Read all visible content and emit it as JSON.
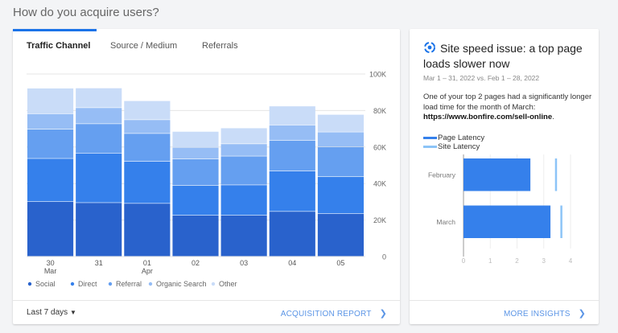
{
  "page_title": "How do you acquire users?",
  "acquisition": {
    "tabs": [
      {
        "label": "Traffic Channel",
        "active": true
      },
      {
        "label": "Source / Medium",
        "active": false
      },
      {
        "label": "Referrals",
        "active": false
      }
    ],
    "date_range": "Last 7 days",
    "report_link": "ACQUISITION REPORT",
    "accent": "#1a73e8"
  },
  "chart_data": [
    {
      "type": "bar",
      "stacked": true,
      "categories": [
        "30 Mar",
        "31",
        "01 Apr",
        "02",
        "03",
        "04",
        "05"
      ],
      "x_tick_labels": [
        [
          "30",
          "Mar"
        ],
        [
          "31",
          ""
        ],
        [
          "01",
          "Apr"
        ],
        [
          "02",
          ""
        ],
        [
          "03",
          ""
        ],
        [
          "04",
          ""
        ],
        [
          "05",
          ""
        ]
      ],
      "y_ticks": [
        "0",
        "20K",
        "40K",
        "60K",
        "80K",
        "100K"
      ],
      "ylim": [
        0,
        100000
      ],
      "y_axis_side": "right",
      "grid": true,
      "legend": "bottom",
      "series": [
        {
          "name": "Social",
          "color": "#2962cc",
          "values": [
            30000,
            29400,
            29000,
            22500,
            22500,
            24600,
            23400
          ]
        },
        {
          "name": "Direct",
          "color": "#3580eb",
          "values": [
            23600,
            27100,
            23000,
            16300,
            16600,
            22100,
            20200
          ]
        },
        {
          "name": "Referral",
          "color": "#659ff0",
          "values": [
            16000,
            16100,
            15300,
            14500,
            15800,
            16800,
            16300
          ]
        },
        {
          "name": "Organic Search",
          "color": "#96bdf5",
          "values": [
            8500,
            8800,
            7500,
            6400,
            6700,
            8400,
            8200
          ]
        },
        {
          "name": "Other",
          "color": "#c9dcf8",
          "values": [
            14000,
            10800,
            10400,
            8700,
            8700,
            10400,
            9600
          ]
        }
      ]
    },
    {
      "type": "bar",
      "orientation": "horizontal",
      "categories": [
        "February",
        "March"
      ],
      "x_ticks": [
        "0",
        "1",
        "2",
        "3",
        "4"
      ],
      "xlim": [
        0,
        4
      ],
      "legend": "top",
      "series": [
        {
          "name": "Page Latency",
          "color": "#3580eb",
          "values": [
            2.5,
            3.25
          ]
        },
        {
          "name": "Site Latency",
          "color": "#8cc4f7",
          "values": [
            3.45,
            3.65
          ]
        }
      ]
    }
  ],
  "insight": {
    "icon": "insights-icon",
    "title": "Site speed issue: a top page loads slower now",
    "date_compare": "Mar 1 – 31, 2022 vs. Feb 1 – 28, 2022",
    "body_text": "One of your top 2 pages had a significantly longer load time for the month of March: ",
    "body_link": "https://www.bonfire.com/sell-online",
    "body_end": ".",
    "more_link": "MORE INSIGHTS"
  }
}
